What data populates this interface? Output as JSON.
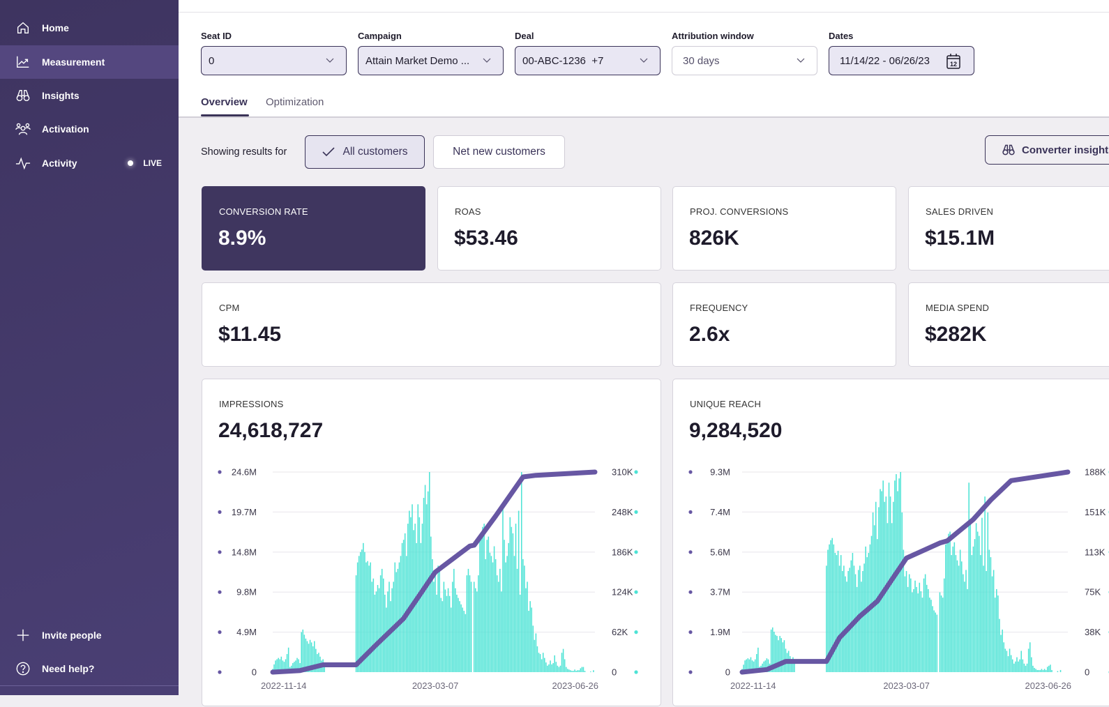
{
  "sidebar": {
    "items": [
      {
        "label": "Home",
        "icon": "home-icon"
      },
      {
        "label": "Measurement",
        "icon": "chart-line-icon",
        "active": true
      },
      {
        "label": "Insights",
        "icon": "binoculars-icon"
      },
      {
        "label": "Activation",
        "icon": "people-icon"
      },
      {
        "label": "Activity",
        "icon": "pulse-icon",
        "badge": "LIVE"
      }
    ],
    "bottom": [
      {
        "label": "Invite people",
        "icon": "plus-icon"
      },
      {
        "label": "Need help?",
        "icon": "help-circle-icon"
      }
    ]
  },
  "filters": [
    {
      "label": "Seat ID",
      "value": "0",
      "active": true
    },
    {
      "label": "Campaign",
      "value": "Attain Market Demo ...",
      "active": true
    },
    {
      "label": "Deal",
      "value": "00-ABC-1236  +7",
      "active": true
    },
    {
      "label": "Attribution window",
      "value": "30 days",
      "active": false
    },
    {
      "label": "Dates",
      "value": "11/14/22 - 06/26/23",
      "active": true,
      "icon": "calendar-icon",
      "icon_text": "12"
    }
  ],
  "tabs": [
    {
      "label": "Overview",
      "active": true
    },
    {
      "label": "Optimization",
      "active": false
    }
  ],
  "segment": {
    "prefix": "Showing results for",
    "options": [
      {
        "label": "All customers",
        "selected": true
      },
      {
        "label": "Net new customers",
        "selected": false
      }
    ]
  },
  "converter_button": "Converter insights",
  "metrics": [
    {
      "label": "CONVERSION RATE",
      "value": "8.9%",
      "highlight": true
    },
    {
      "label": "ROAS",
      "value": "$53.46"
    },
    {
      "label": "PROJ. CONVERSIONS",
      "value": "826K"
    },
    {
      "label": "SALES DRIVEN",
      "value": "$15.1M"
    },
    {
      "label": "CPM",
      "value": "$11.45"
    },
    {
      "label": "FREQUENCY",
      "value": "2.6x"
    },
    {
      "label": "MEDIA SPEND",
      "value": "$282K"
    }
  ],
  "colors": {
    "accent": "#3f365f",
    "bar": "#4de3d5",
    "line": "#6757a3"
  },
  "chart_data": [
    {
      "type": "bar+line",
      "title": "IMPRESSIONS",
      "total": "24,618,727",
      "left_ticks": [
        "0",
        "4.9M",
        "9.8M",
        "14.8M",
        "19.7M",
        "24.6M"
      ],
      "right_ticks": [
        "0",
        "62K",
        "124K",
        "186K",
        "248K",
        "310K"
      ],
      "x_ticks": [
        "2022-11-14",
        "2023-03-07",
        "2023-06-26"
      ],
      "xlim": [
        "2022-11-14",
        "2023-06-26"
      ],
      "left_ylim": [
        0,
        24.6
      ],
      "right_ylim": [
        0,
        310
      ],
      "grid": true,
      "bars_daily_thousands": {
        "start": "2022-11-14",
        "values": [
          5,
          12,
          18,
          20,
          22,
          20,
          24,
          18,
          16,
          20,
          28,
          38,
          8,
          10,
          14,
          16,
          18,
          22,
          20,
          14,
          62,
          66,
          58,
          52,
          48,
          44,
          50,
          46,
          40,
          48,
          36,
          28,
          30,
          24,
          18,
          20,
          12,
          0,
          0,
          0,
          0,
          0,
          0,
          0,
          0,
          0,
          0,
          0,
          0,
          0,
          0,
          0,
          0,
          0,
          0,
          0,
          0,
          0,
          150,
          170,
          180,
          186,
          190,
          200,
          186,
          170,
          172,
          165,
          170,
          140,
          145,
          120,
          125,
          135,
          130,
          150,
          160,
          145,
          120,
          100,
          125,
          140,
          110,
          130,
          140,
          170,
          155,
          160,
          170,
          180,
          200,
          205,
          215,
          180,
          230,
          250,
          240,
          260,
          220,
          230,
          200,
          260,
          240,
          200,
          230,
          270,
          290,
          260,
          280,
          310,
          210,
          175,
          140,
          150,
          120,
          165,
          160,
          115,
          110,
          140,
          128,
          118,
          130,
          118,
          100,
          140,
          160,
          130,
          120,
          115,
          110,
          105,
          100,
          95,
          90,
          150,
          160,
          150,
          140,
          0,
          140,
          130,
          125,
          150,
          210,
          215,
          225,
          230,
          175,
          205,
          210,
          185,
          180,
          170,
          195,
          175,
          150,
          140,
          160,
          125,
          260,
          205,
          170,
          180,
          200,
          240,
          225,
          215,
          180,
          230,
          160,
          250,
          120,
          310,
          175,
          165,
          130,
          140,
          95,
          110,
          100,
          72,
          50,
          60,
          40,
          30,
          28,
          20,
          30,
          22,
          15,
          10,
          12,
          18,
          12,
          14,
          26,
          16,
          10,
          8,
          10,
          30,
          36,
          20,
          8,
          5,
          4,
          3,
          2,
          2,
          4,
          2,
          3,
          3,
          6,
          8,
          8,
          2,
          0,
          0,
          0,
          1,
          0,
          3
        ]
      },
      "cumulative_millions": [
        [
          "2022-11-14",
          0
        ],
        [
          "2022-12-03",
          0.2
        ],
        [
          "2022-12-19",
          0.9
        ],
        [
          "2023-01-11",
          0.9
        ],
        [
          "2023-01-24",
          3.2
        ],
        [
          "2023-02-13",
          6.6
        ],
        [
          "2023-03-07",
          12.3
        ],
        [
          "2023-03-31",
          15.5
        ],
        [
          "2023-04-03",
          15.6
        ],
        [
          "2023-04-18",
          19.2
        ],
        [
          "2023-05-07",
          24.0
        ],
        [
          "2023-05-16",
          24.2
        ],
        [
          "2023-06-26",
          24.6
        ]
      ]
    },
    {
      "type": "bar+line",
      "title": "UNIQUE REACH",
      "total": "9,284,520",
      "left_ticks": [
        "0",
        "1.9M",
        "3.7M",
        "5.6M",
        "7.4M",
        "9.3M"
      ],
      "right_ticks": [
        "0",
        "38K",
        "75K",
        "113K",
        "151K",
        "188K"
      ],
      "x_ticks": [
        "2022-11-14",
        "2023-03-07",
        "2023-06-26"
      ],
      "xlim": [
        "2022-11-14",
        "2023-06-26"
      ],
      "left_ylim": [
        0,
        9.3
      ],
      "right_ylim": [
        0,
        188
      ],
      "grid": true,
      "bars_daily_thousands": {
        "start": "2022-11-14",
        "values": [
          3,
          7,
          11,
          12,
          13,
          12,
          14,
          11,
          10,
          12,
          17,
          23,
          5,
          6,
          8,
          10,
          11,
          13,
          12,
          8,
          40,
          42,
          38,
          35,
          34,
          30,
          34,
          32,
          28,
          30,
          22,
          18,
          20,
          15,
          12,
          14,
          8,
          0,
          0,
          0,
          0,
          0,
          0,
          0,
          0,
          0,
          0,
          0,
          0,
          0,
          0,
          0,
          0,
          0,
          0,
          0,
          0,
          0,
          100,
          115,
          120,
          124,
          126,
          120,
          112,
          110,
          114,
          100,
          110,
          95,
          100,
          90,
          85,
          95,
          98,
          105,
          112,
          100,
          92,
          80,
          96,
          100,
          85,
          95,
          102,
          118,
          108,
          112,
          120,
          128,
          150,
          138,
          160,
          125,
          155,
          172,
          170,
          180,
          160,
          165,
          140,
          178,
          165,
          140,
          160,
          180,
          186,
          170,
          182,
          188,
          150,
          115,
          90,
          95,
          80,
          92,
          88,
          75,
          78,
          86,
          80,
          74,
          84,
          76,
          70,
          88,
          92,
          82,
          78,
          70,
          68,
          62,
          58,
          56,
          54,
          0,
          75,
          72,
          70,
          88,
          120,
          125,
          130,
          132,
          110,
          118,
          122,
          110,
          105,
          100,
          115,
          104,
          92,
          85,
          96,
          78,
          178,
          140,
          110,
          118,
          125,
          140,
          132,
          128,
          110,
          145,
          100,
          165,
          95,
          150,
          115,
          108,
          90,
          96,
          70,
          78,
          72,
          50,
          35,
          40,
          28,
          22,
          20,
          15,
          22,
          16,
          12,
          8,
          10,
          14,
          10,
          12,
          20,
          12,
          8,
          6,
          8,
          22,
          28,
          14,
          6,
          4,
          3,
          2,
          2,
          2,
          3,
          2,
          3,
          2,
          5,
          6,
          7,
          2,
          0,
          0,
          0,
          1,
          0,
          2
        ]
      },
      "cumulative_millions": [
        [
          "2022-11-14",
          0
        ],
        [
          "2022-12-01",
          0.12
        ],
        [
          "2022-12-14",
          0.5
        ],
        [
          "2023-01-11",
          0.5
        ],
        [
          "2023-01-20",
          1.6
        ],
        [
          "2023-02-03",
          2.6
        ],
        [
          "2023-02-15",
          3.3
        ],
        [
          "2023-03-07",
          5.3
        ],
        [
          "2023-03-30",
          6.0
        ],
        [
          "2023-04-04",
          6.1
        ],
        [
          "2023-04-22",
          7.1
        ],
        [
          "2023-05-04",
          8.0
        ],
        [
          "2023-05-18",
          8.9
        ],
        [
          "2023-06-26",
          9.3
        ]
      ]
    }
  ]
}
